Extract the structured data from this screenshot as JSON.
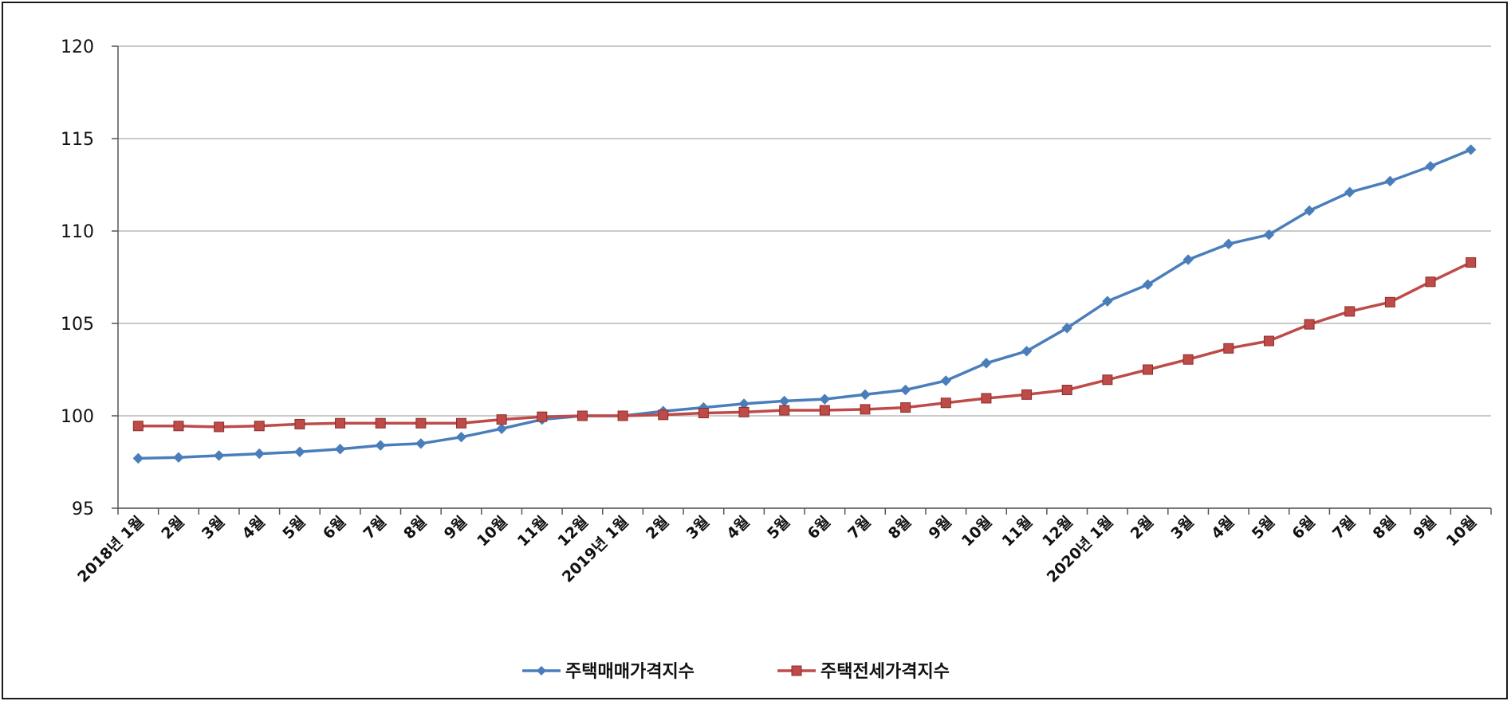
{
  "chart_data": {
    "type": "line",
    "title": "",
    "xlabel": "",
    "ylabel": "",
    "ylim": [
      95,
      120
    ],
    "yticks": [
      95,
      100,
      105,
      110,
      115,
      120
    ],
    "grid": true,
    "legend_position": "bottom",
    "categories": [
      "2018년 1월",
      "2월",
      "3월",
      "4월",
      "5월",
      "6월",
      "7월",
      "8월",
      "9월",
      "10월",
      "11월",
      "12월",
      "2019년 1월",
      "2월",
      "3월",
      "4월",
      "5월",
      "6월",
      "7월",
      "8월",
      "9월",
      "10월",
      "11월",
      "12월",
      "2020년 1월",
      "2월",
      "3월",
      "4월",
      "5월",
      "6월",
      "7월",
      "8월",
      "9월",
      "10월"
    ],
    "series": [
      {
        "name": "주택매매가격지수",
        "color": "#4a7ebb",
        "marker": "diamond",
        "values": [
          97.7,
          97.75,
          97.85,
          97.95,
          98.05,
          98.2,
          98.4,
          98.5,
          98.85,
          99.3,
          99.8,
          100.0,
          100.0,
          100.25,
          100.45,
          100.65,
          100.8,
          100.9,
          101.15,
          101.4,
          101.9,
          102.85,
          103.5,
          104.75,
          106.2,
          107.1,
          108.45,
          109.3,
          109.8,
          111.1,
          112.1,
          112.7,
          113.5,
          114.4
        ]
      },
      {
        "name": "주택전세가격지수",
        "color": "#be4b48",
        "marker": "square",
        "values": [
          99.45,
          99.45,
          99.4,
          99.45,
          99.55,
          99.6,
          99.6,
          99.6,
          99.6,
          99.8,
          99.95,
          100.0,
          100.0,
          100.05,
          100.15,
          100.2,
          100.3,
          100.3,
          100.35,
          100.45,
          100.7,
          100.95,
          101.15,
          101.4,
          101.95,
          102.5,
          103.05,
          103.65,
          104.05,
          104.95,
          105.65,
          106.15,
          107.25,
          108.3
        ]
      }
    ]
  }
}
